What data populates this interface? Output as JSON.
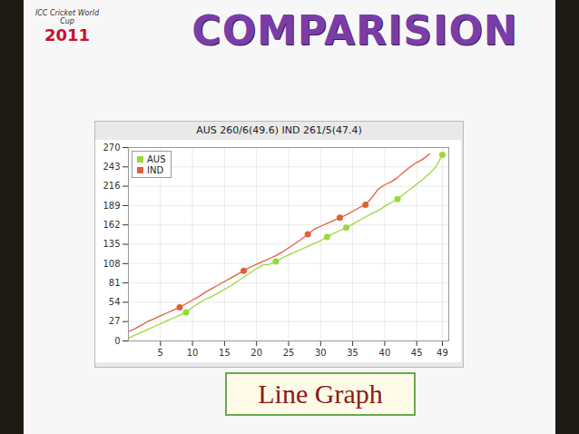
{
  "heading": "COMPARISION",
  "logo": [
    "ICC Cricket World Cup",
    "2011"
  ],
  "caption": "Line Graph",
  "chart_data": {
    "type": "line",
    "title": "AUS 260/6(49.6) IND 261/5(47.4)",
    "x": [
      0,
      1,
      2,
      3,
      4,
      5,
      6,
      7,
      8,
      9,
      10,
      11,
      12,
      13,
      14,
      15,
      16,
      17,
      18,
      19,
      20,
      21,
      22,
      23,
      24,
      25,
      26,
      27,
      28,
      29,
      30,
      31,
      32,
      33,
      34,
      35,
      36,
      37,
      38,
      39,
      40,
      41,
      42,
      43,
      44,
      45,
      46,
      47,
      48,
      49
    ],
    "series": [
      {
        "name": "AUS",
        "color": "#9ad83a",
        "marker": "circle",
        "values": [
          4,
          8,
          12,
          16,
          20,
          24,
          28,
          32,
          36,
          40,
          47,
          53,
          58,
          62,
          67,
          72,
          77,
          83,
          89,
          95,
          101,
          106,
          107,
          111,
          116,
          120,
          124,
          128,
          132,
          136,
          140,
          145,
          150,
          154,
          158,
          163,
          168,
          173,
          178,
          182,
          188,
          193,
          198,
          205,
          212,
          219,
          226,
          234,
          243,
          260
        ],
        "wickets": {
          "x": [
            9,
            23,
            31,
            34,
            42,
            49
          ],
          "y": [
            40,
            111,
            145,
            158,
            198,
            260
          ]
        }
      },
      {
        "name": "IND",
        "color": "#e0603c",
        "marker": "circle",
        "values": [
          13,
          17,
          22,
          27,
          31,
          35,
          39,
          43,
          47,
          52,
          57,
          62,
          68,
          73,
          78,
          83,
          88,
          93,
          98,
          103,
          107,
          111,
          115,
          119,
          124,
          130,
          136,
          142,
          149,
          156,
          160,
          164,
          168,
          172,
          176,
          181,
          186,
          190,
          200,
          212,
          218,
          222,
          228,
          236,
          243,
          249,
          254,
          261,
          null,
          null
        ],
        "wickets": {
          "x": [
            8,
            18,
            28,
            33,
            37
          ],
          "y": [
            47,
            98,
            149,
            172,
            190
          ]
        }
      }
    ],
    "xlim": [
      0,
      50
    ],
    "ylim": [
      0,
      270
    ],
    "xticks": [
      5,
      10,
      15,
      20,
      25,
      30,
      35,
      40,
      45,
      49
    ],
    "yticks": [
      0,
      27,
      54,
      81,
      108,
      135,
      162,
      189,
      216,
      243,
      270
    ],
    "grid": true,
    "legend": "top-left"
  }
}
